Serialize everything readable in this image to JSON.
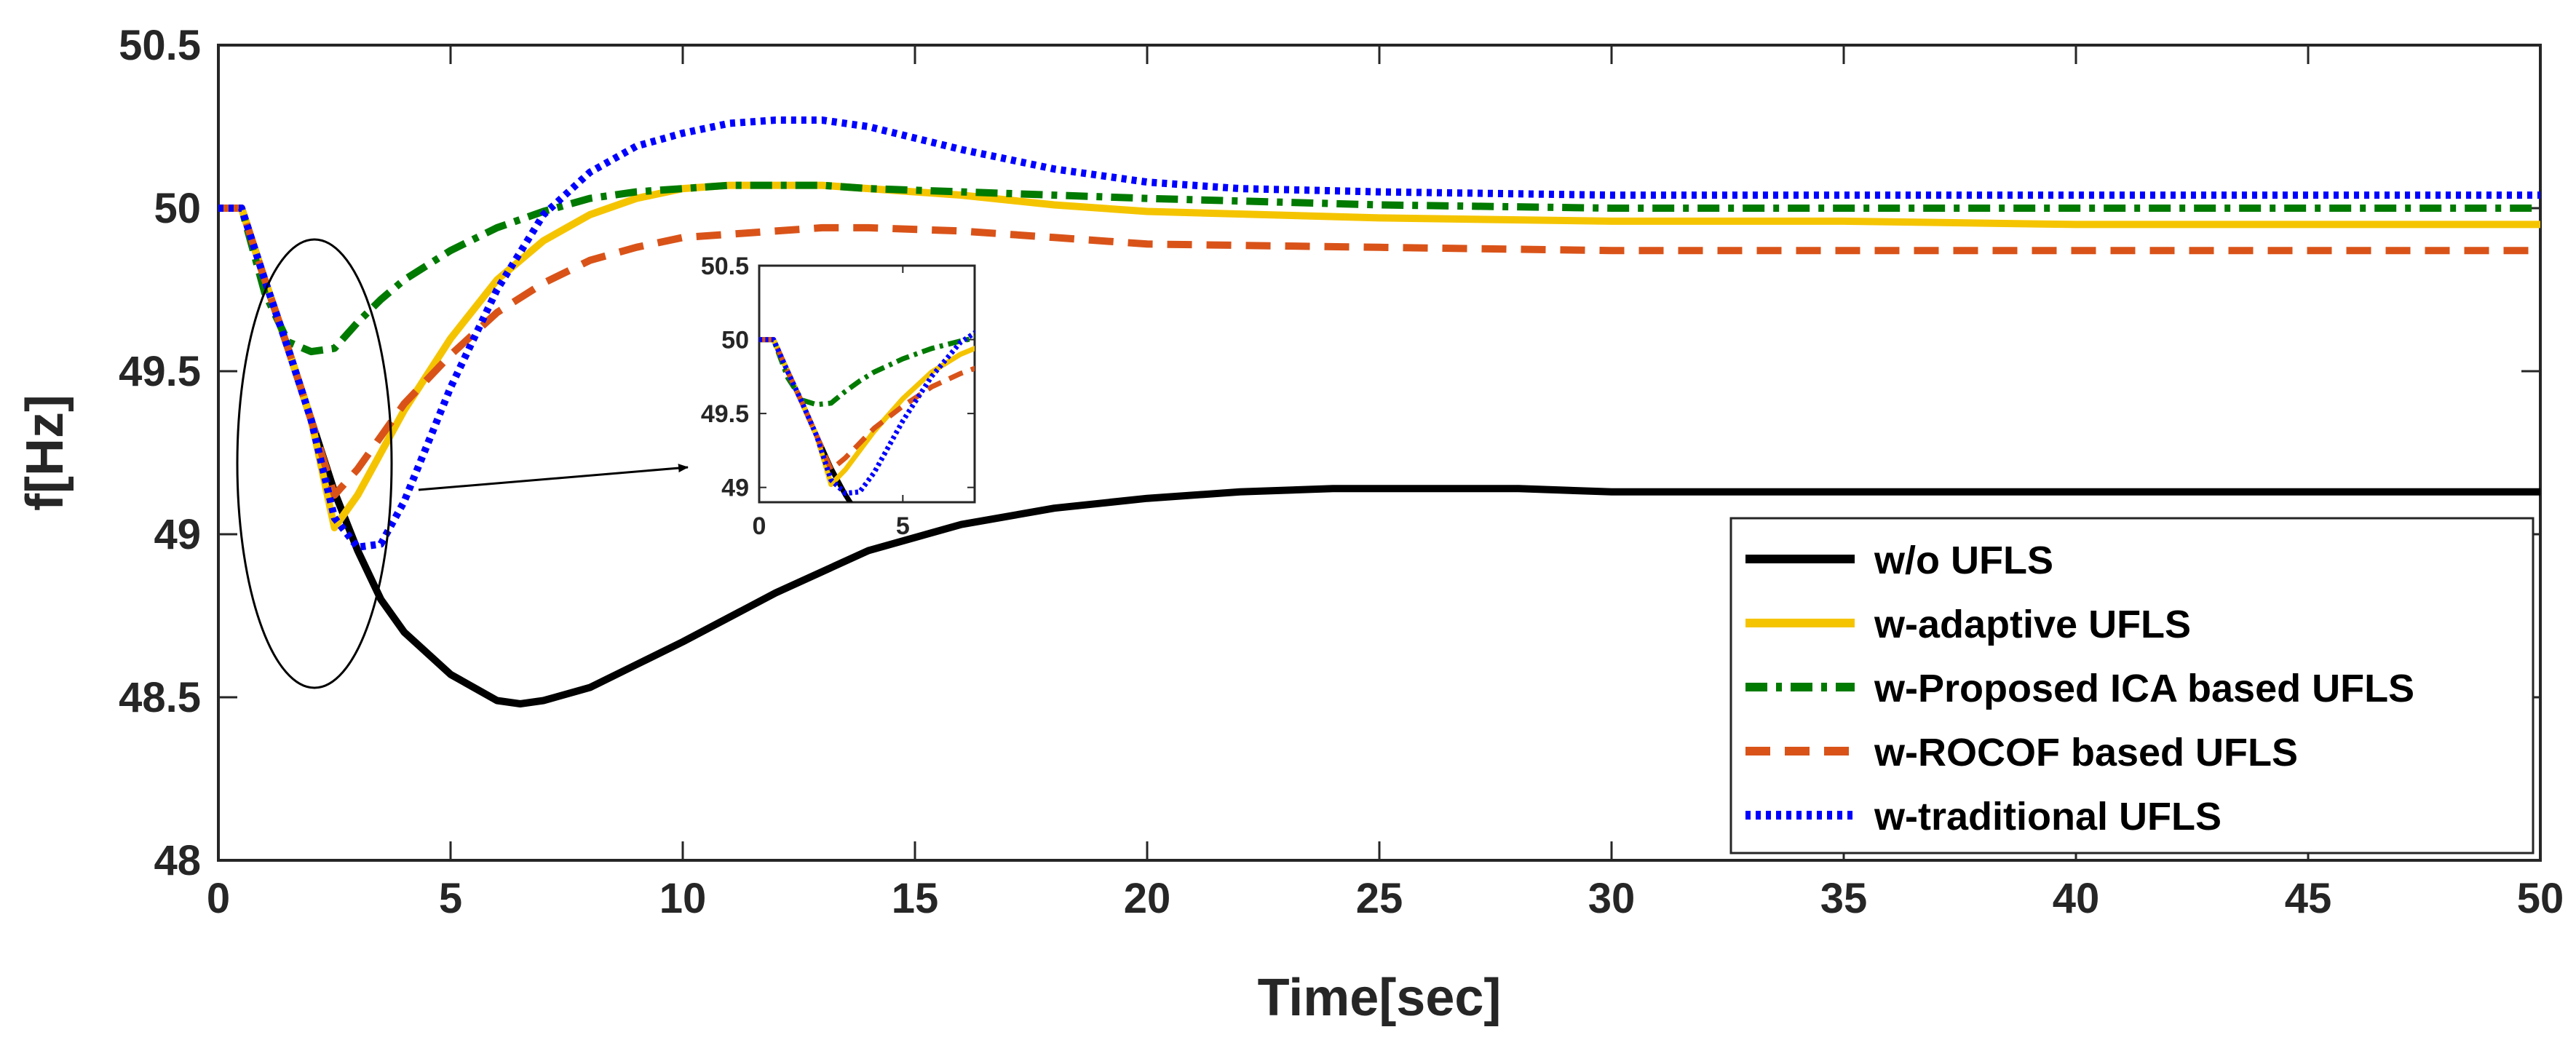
{
  "chart_data": {
    "type": "line",
    "title": "",
    "xlabel": "Time[sec]",
    "ylabel": "f[Hz]",
    "xlim": [
      0,
      50
    ],
    "ylim": [
      48,
      50.5
    ],
    "xticks": [
      "0",
      "5",
      "10",
      "15",
      "20",
      "25",
      "30",
      "35",
      "40",
      "45",
      "50"
    ],
    "yticks": [
      "48",
      "48.5",
      "49",
      "49.5",
      "50",
      "50.5"
    ],
    "grid": false,
    "legend_position": "bottom-right",
    "series": [
      {
        "name": "w/o UFLS",
        "color": "#000000",
        "style": "solid",
        "x": [
          0,
          0.5,
          1,
          1.5,
          2,
          2.5,
          3,
          3.5,
          4,
          5,
          6,
          6.5,
          7,
          8,
          9,
          10,
          12,
          14,
          16,
          18,
          20,
          22,
          24,
          26,
          28,
          30,
          35,
          40,
          45,
          50
        ],
        "y": [
          50,
          50,
          49.78,
          49.57,
          49.35,
          49.13,
          48.95,
          48.8,
          48.7,
          48.57,
          48.49,
          48.48,
          48.49,
          48.53,
          48.6,
          48.67,
          48.82,
          48.95,
          49.03,
          49.08,
          49.11,
          49.13,
          49.14,
          49.14,
          49.14,
          49.13,
          49.13,
          49.13,
          49.13,
          49.13
        ]
      },
      {
        "name": "w-adaptive UFLS",
        "color": "#F5C400",
        "style": "solid",
        "x": [
          0,
          0.5,
          1,
          1.5,
          2,
          2.5,
          3,
          3.5,
          4,
          5,
          6,
          7,
          8,
          9,
          10,
          11,
          12,
          13,
          14,
          16,
          18,
          20,
          25,
          30,
          35,
          40,
          45,
          50
        ],
        "y": [
          50,
          50,
          49.78,
          49.57,
          49.35,
          49.02,
          49.12,
          49.25,
          49.38,
          49.6,
          49.78,
          49.9,
          49.98,
          50.03,
          50.06,
          50.07,
          50.07,
          50.07,
          50.06,
          50.04,
          50.01,
          49.99,
          49.97,
          49.96,
          49.96,
          49.95,
          49.95,
          49.95
        ]
      },
      {
        "name": "w-Proposed ICA based UFLS",
        "color": "#007A00",
        "style": "dashdot",
        "x": [
          0,
          0.5,
          1,
          1.5,
          2,
          2.5,
          3,
          3.5,
          4,
          5,
          6,
          7,
          8,
          9,
          10,
          11,
          12,
          13,
          14,
          16,
          18,
          20,
          25,
          30,
          35,
          40,
          45,
          50
        ],
        "y": [
          50,
          50,
          49.74,
          49.59,
          49.56,
          49.57,
          49.65,
          49.72,
          49.78,
          49.87,
          49.94,
          49.99,
          50.03,
          50.05,
          50.06,
          50.07,
          50.07,
          50.07,
          50.06,
          50.05,
          50.04,
          50.03,
          50.01,
          50.0,
          50.0,
          50.0,
          50.0,
          50.0
        ]
      },
      {
        "name": "w-ROCOF based UFLS",
        "color": "#D95319",
        "style": "dashed",
        "x": [
          0,
          0.5,
          1,
          1.5,
          2,
          2.5,
          3,
          3.5,
          4,
          5,
          6,
          7,
          8,
          9,
          10,
          12,
          13,
          14,
          16,
          18,
          20,
          25,
          30,
          35,
          40,
          45,
          50
        ],
        "y": [
          50,
          50,
          49.78,
          49.57,
          49.35,
          49.12,
          49.2,
          49.3,
          49.4,
          49.55,
          49.68,
          49.77,
          49.84,
          49.88,
          49.91,
          49.93,
          49.94,
          49.94,
          49.93,
          49.91,
          49.89,
          49.88,
          49.87,
          49.87,
          49.87,
          49.87,
          49.87
        ]
      },
      {
        "name": "w-traditional UFLS",
        "color": "#0000FF",
        "style": "dotted",
        "x": [
          0,
          0.5,
          1,
          1.5,
          2,
          2.5,
          3,
          3.5,
          4,
          5,
          6,
          7,
          8,
          9,
          10,
          11,
          12,
          13,
          14,
          16,
          18,
          20,
          22,
          25,
          30,
          35,
          40,
          45,
          50
        ],
        "y": [
          50,
          50,
          49.78,
          49.57,
          49.35,
          49.05,
          48.96,
          48.97,
          49.1,
          49.45,
          49.75,
          49.98,
          50.11,
          50.19,
          50.23,
          50.26,
          50.27,
          50.27,
          50.25,
          50.18,
          50.12,
          50.08,
          50.06,
          50.05,
          50.04,
          50.04,
          50.04,
          50.04,
          50.04
        ]
      }
    ],
    "inset": {
      "xlim": [
        0,
        7.5
      ],
      "ylim": [
        48.9,
        50.5
      ],
      "xticks": [
        "0",
        "5"
      ],
      "yticks": [
        "49",
        "49.5",
        "50",
        "50.5"
      ]
    }
  }
}
